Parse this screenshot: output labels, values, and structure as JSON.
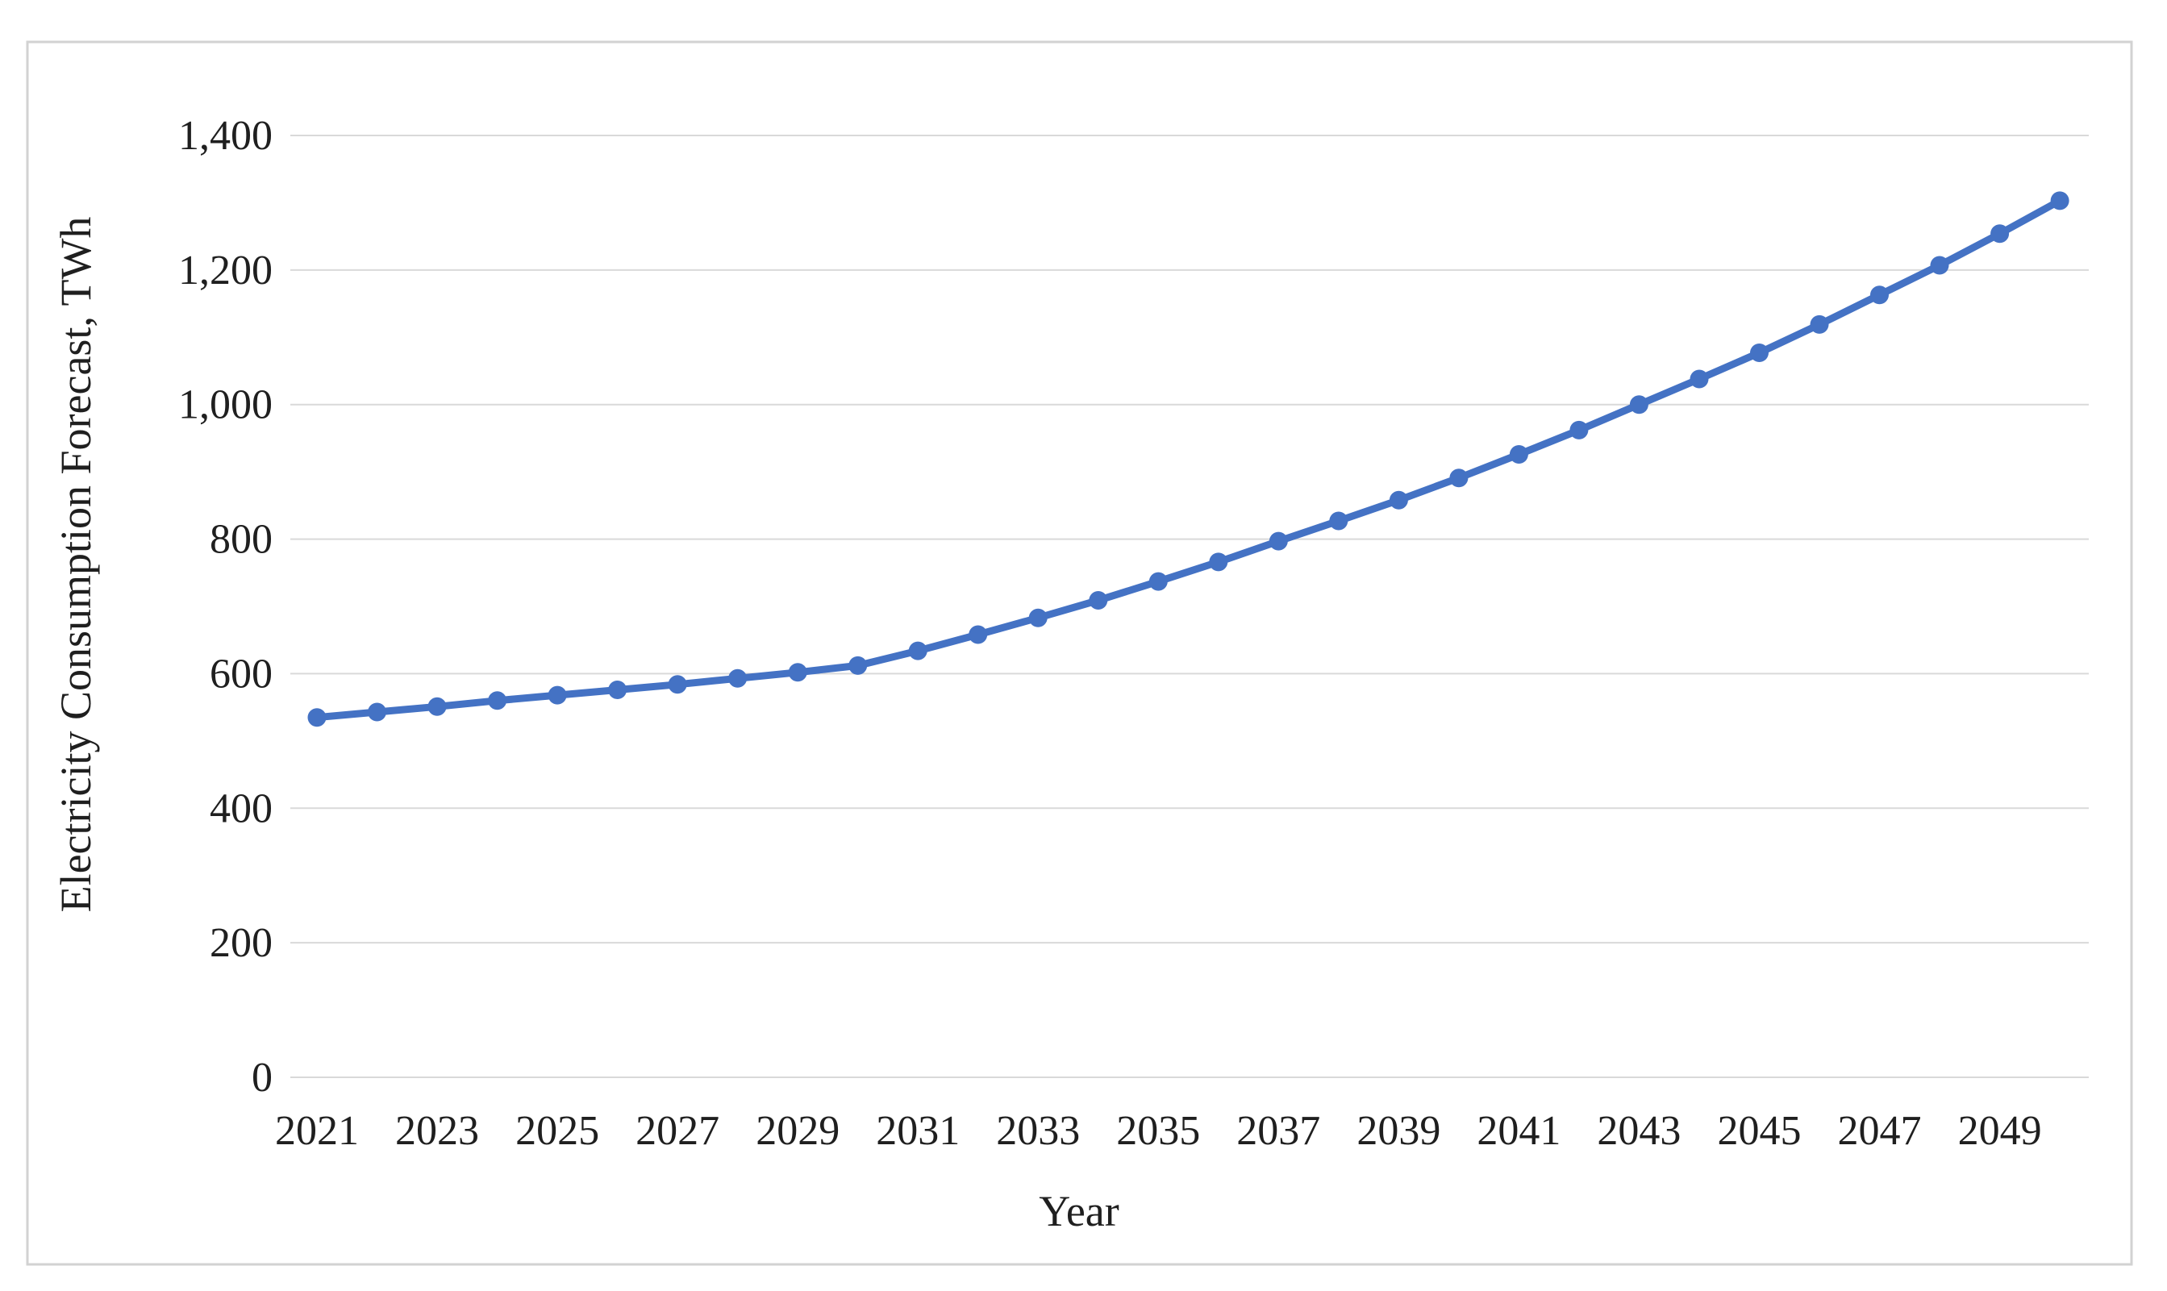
{
  "figure": {
    "background": "#ffffff",
    "border_color": "#d2d2d2"
  },
  "chart_data": {
    "type": "line",
    "title": "",
    "xlabel": "Year",
    "ylabel": "Electricity Consumption Forecast, TWh",
    "x": [
      2021,
      2022,
      2023,
      2024,
      2025,
      2026,
      2027,
      2028,
      2029,
      2030,
      2031,
      2032,
      2033,
      2034,
      2035,
      2036,
      2037,
      2038,
      2039,
      2040,
      2041,
      2042,
      2043,
      2044,
      2045,
      2046,
      2047,
      2048,
      2049,
      2050
    ],
    "series": [
      {
        "name": "Electricity consumption forecast",
        "color": "#4472C4",
        "marker": "circle",
        "values": [
          535,
          543,
          551,
          560,
          568,
          576,
          584,
          593,
          602,
          612,
          634,
          658,
          683,
          709,
          737,
          766,
          797,
          827,
          858,
          891,
          926,
          962,
          1000,
          1038,
          1077,
          1119,
          1163,
          1207,
          1254,
          1303
        ]
      }
    ],
    "ylim": [
      0,
      1400
    ],
    "yticks": [
      0,
      200,
      400,
      600,
      800,
      1000,
      1200,
      1400
    ],
    "ytick_labels": [
      "0",
      "200",
      "400",
      "600",
      "800",
      "1,000",
      "1,200",
      "1,400"
    ],
    "xticks": [
      2021,
      2023,
      2025,
      2027,
      2029,
      2031,
      2033,
      2035,
      2037,
      2039,
      2041,
      2043,
      2045,
      2047,
      2049
    ],
    "xtick_labels": [
      "2021",
      "2023",
      "2025",
      "2027",
      "2029",
      "2031",
      "2033",
      "2035",
      "2037",
      "2039",
      "2041",
      "2043",
      "2045",
      "2047",
      "2049"
    ],
    "grid": "horizontal",
    "gridline_color": "#d9d9d9",
    "axis_text_color": "#1f1f1f",
    "legend": "none"
  }
}
